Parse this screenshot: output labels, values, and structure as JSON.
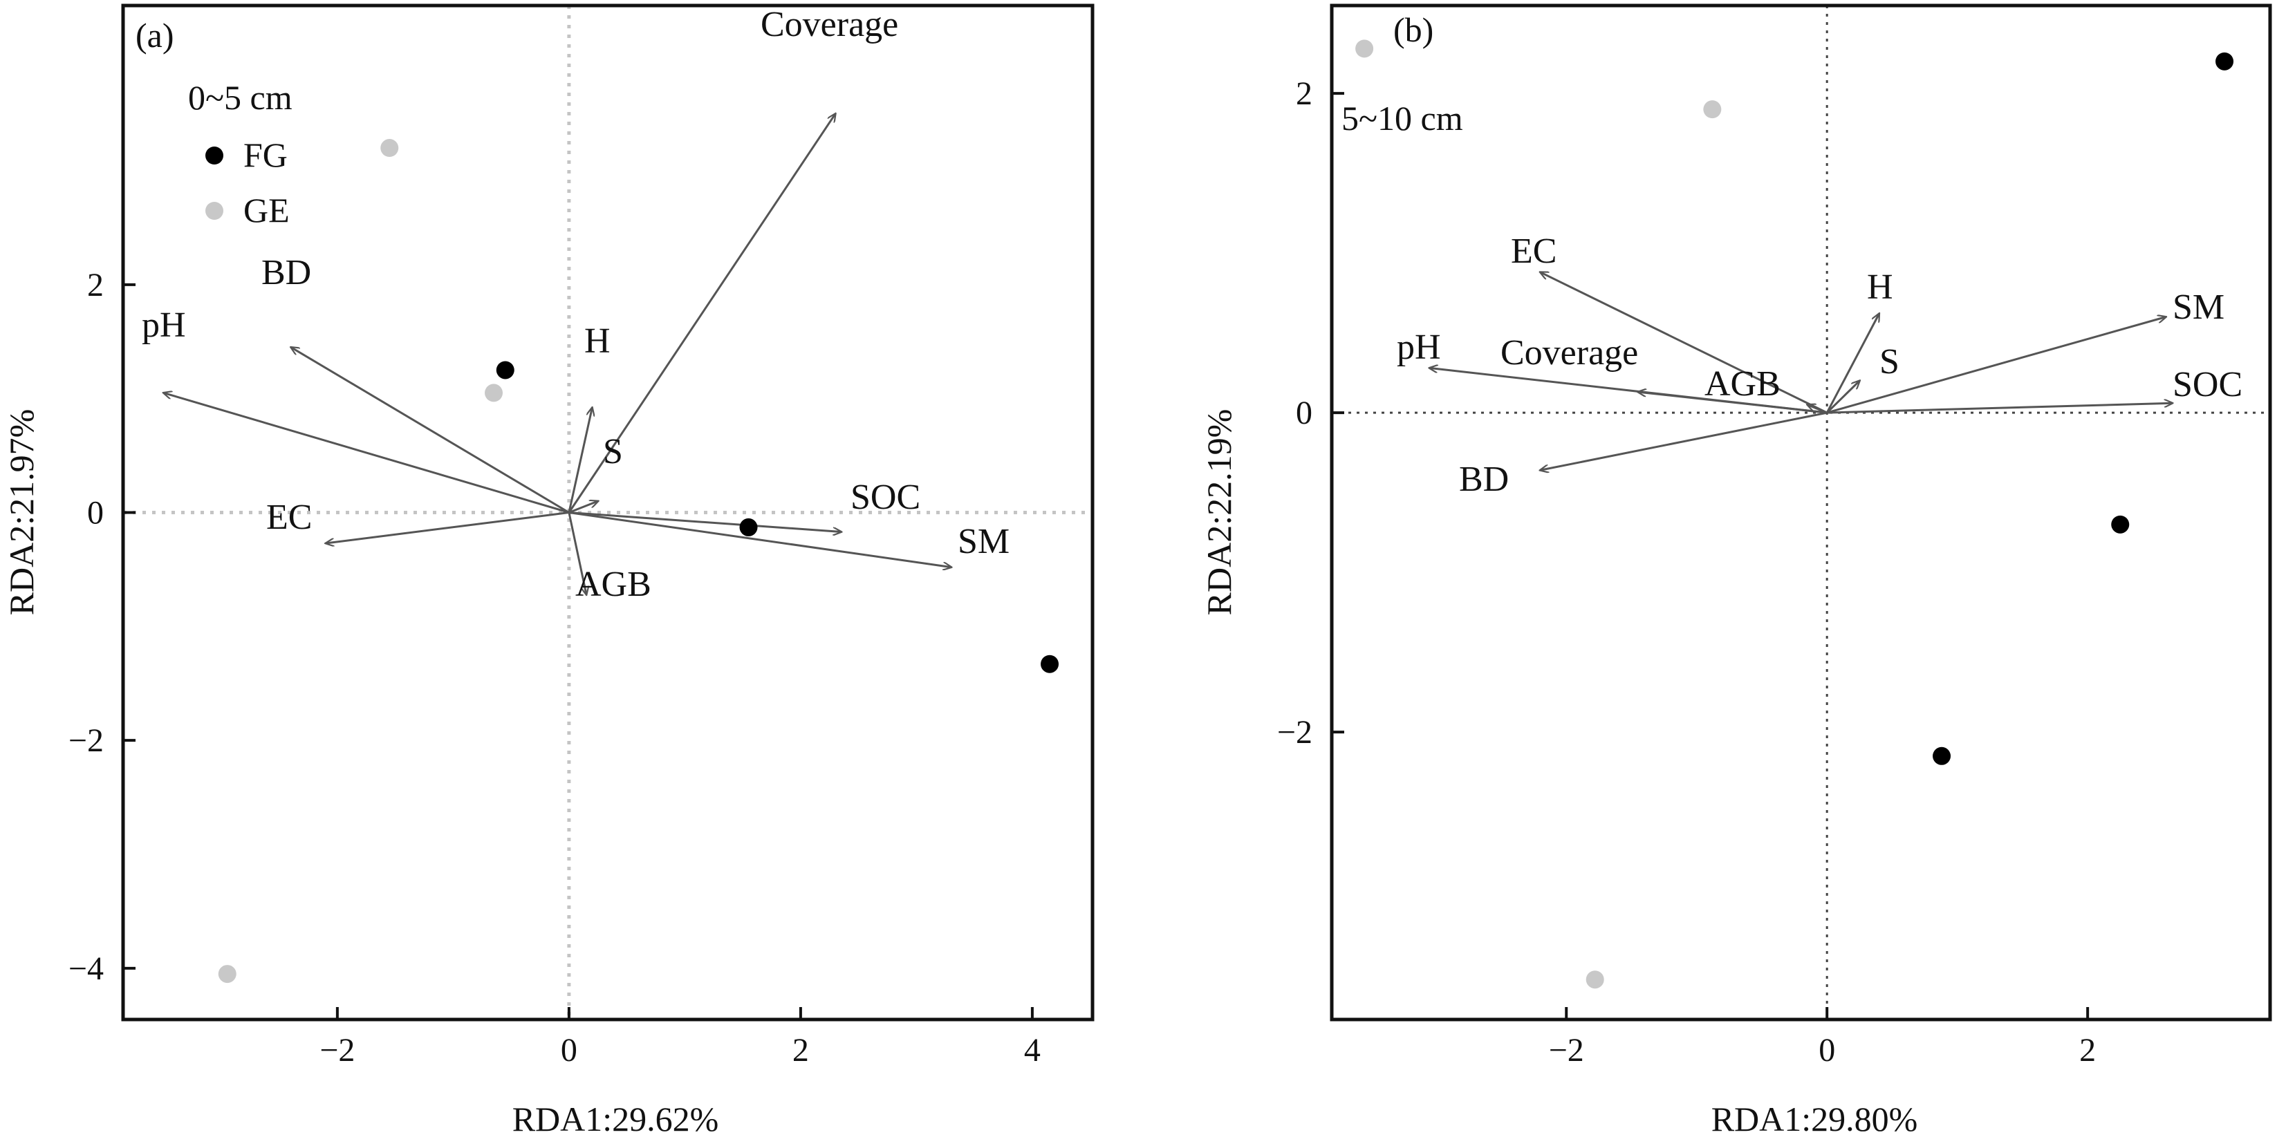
{
  "chart_data": [
    {
      "type": "scatter",
      "panel_label": "(a)",
      "depth_label": "0~5 cm",
      "xlabel": "RDA1:29.62%",
      "ylabel": "RDA2:21.97%",
      "xlim": [
        -3.85,
        4.52
      ],
      "ylim": [
        -4.45,
        4.45
      ],
      "xticks": [
        -2,
        0,
        2,
        4
      ],
      "yticks": [
        -4,
        -2,
        0,
        2
      ],
      "grid": false,
      "origin_line_style": "dotted-light",
      "legend": {
        "position": "top-left",
        "entries": [
          {
            "label": "FG",
            "color": "#000000"
          },
          {
            "label": "GE",
            "color": "#c8c8c8"
          }
        ]
      },
      "series": [
        {
          "name": "FG",
          "color": "#000000",
          "points": [
            {
              "x": -0.55,
              "y": 1.25
            },
            {
              "x": 1.55,
              "y": -0.13
            },
            {
              "x": 4.15,
              "y": -1.33
            }
          ]
        },
        {
          "name": "GE",
          "color": "#c8c8c8",
          "points": [
            {
              "x": -1.55,
              "y": 3.2
            },
            {
              "x": -0.65,
              "y": 1.05
            },
            {
              "x": -2.95,
              "y": -4.05
            }
          ]
        }
      ],
      "arrows": [
        {
          "label": "Coverage",
          "x": 2.3,
          "y": 3.5
        },
        {
          "label": "pH",
          "x": -3.5,
          "y": 1.05
        },
        {
          "label": "BD",
          "x": -2.4,
          "y": 1.45
        },
        {
          "label": "H",
          "x": 0.2,
          "y": 0.92
        },
        {
          "label": "S",
          "x": 0.25,
          "y": 0.1
        },
        {
          "label": "EC",
          "x": -2.1,
          "y": -0.27
        },
        {
          "label": "AGB",
          "x": 0.15,
          "y": -0.72
        },
        {
          "label": "SOC",
          "x": 2.35,
          "y": -0.17
        },
        {
          "label": "SM",
          "x": 3.3,
          "y": -0.48
        }
      ]
    },
    {
      "type": "scatter",
      "panel_label": "(b)",
      "depth_label": "5~10 cm",
      "xlabel": "RDA1:29.80%",
      "ylabel": "RDA2:22.19%",
      "xlim": [
        -3.8,
        3.4
      ],
      "ylim": [
        -3.8,
        2.55
      ],
      "xticks": [
        -2,
        0,
        2
      ],
      "yticks": [
        -2,
        0,
        2
      ],
      "grid": false,
      "origin_line_style": "dotted-dark",
      "series": [
        {
          "name": "FG",
          "color": "#000000",
          "points": [
            {
              "x": 3.05,
              "y": 2.2
            },
            {
              "x": 2.25,
              "y": -0.7
            },
            {
              "x": 0.88,
              "y": -2.15
            }
          ]
        },
        {
          "name": "GE",
          "color": "#c8c8c8",
          "points": [
            {
              "x": -3.55,
              "y": 2.28
            },
            {
              "x": -0.88,
              "y": 1.9
            },
            {
              "x": -1.78,
              "y": -3.55
            }
          ]
        }
      ],
      "arrows": [
        {
          "label": "EC",
          "x": -2.2,
          "y": 0.88
        },
        {
          "label": "pH",
          "x": -3.05,
          "y": 0.28
        },
        {
          "label": "Coverage",
          "x": -1.45,
          "y": 0.13
        },
        {
          "label": "AGB",
          "x": -0.15,
          "y": 0.05
        },
        {
          "label": "H",
          "x": 0.4,
          "y": 0.62
        },
        {
          "label": "S",
          "x": 0.25,
          "y": 0.2
        },
        {
          "label": "SM",
          "x": 2.6,
          "y": 0.6
        },
        {
          "label": "SOC",
          "x": 2.65,
          "y": 0.06
        },
        {
          "label": "BD",
          "x": -2.2,
          "y": -0.36
        }
      ]
    }
  ]
}
